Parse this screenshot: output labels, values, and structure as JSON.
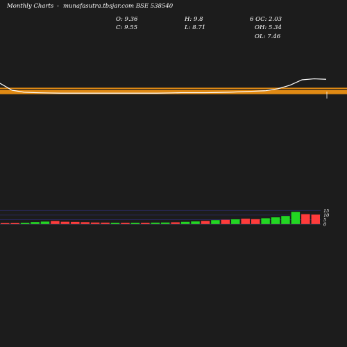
{
  "header": {
    "site_label": "Monthly Charts",
    "dash": "-",
    "source_label": "munafasutra.tbsjar.com BSE 538540",
    "open": "O: 9.36",
    "close": "C: 9.55",
    "high": "H: 9.8",
    "low": "L: 8.71",
    "oc": "6 OC: 2.03",
    "oh": "OH: 5.34",
    "ol": "OL: 7.46"
  },
  "colors": {
    "background": "#1c1c1c",
    "price_band": "#e08a14",
    "price_line": "#ffffff",
    "volume_up": "#22d622",
    "volume_down": "#ff3b3b",
    "volume_grid": "#2a2a66",
    "text": "#ffffff"
  },
  "chart_data": [
    {
      "type": "line",
      "title": "",
      "series": [
        {
          "values": [
            14.3,
            12.9,
            12.5,
            12.4,
            12.35,
            12.3,
            12.3,
            12.3,
            12.3,
            12.3,
            12.3,
            12.3,
            12.3,
            12.3,
            12.35,
            12.4,
            12.4,
            12.4,
            12.45,
            12.5,
            12.6,
            12.7,
            12.8,
            13.2,
            13.9,
            15.0,
            15.2,
            15.1
          ]
        }
      ],
      "ylim": [
        11.5,
        15.7
      ]
    },
    {
      "type": "bar",
      "title": "",
      "ytick_labels": [
        "15",
        "10",
        "5",
        "0"
      ],
      "yticks": [
        15,
        10,
        5,
        0
      ],
      "ylim": [
        0,
        16
      ],
      "bars": [
        {
          "value": 1.4,
          "dir": "down"
        },
        {
          "value": 1.5,
          "dir": "down"
        },
        {
          "value": 1.6,
          "dir": "up"
        },
        {
          "value": 2.2,
          "dir": "up"
        },
        {
          "value": 2.8,
          "dir": "up"
        },
        {
          "value": 3.5,
          "dir": "down"
        },
        {
          "value": 2.6,
          "dir": "down"
        },
        {
          "value": 2.4,
          "dir": "down"
        },
        {
          "value": 2.1,
          "dir": "down"
        },
        {
          "value": 1.8,
          "dir": "down"
        },
        {
          "value": 1.7,
          "dir": "down"
        },
        {
          "value": 1.6,
          "dir": "up"
        },
        {
          "value": 1.6,
          "dir": "down"
        },
        {
          "value": 1.6,
          "dir": "up"
        },
        {
          "value": 1.6,
          "dir": "down"
        },
        {
          "value": 1.7,
          "dir": "up"
        },
        {
          "value": 1.8,
          "dir": "up"
        },
        {
          "value": 2.0,
          "dir": "down"
        },
        {
          "value": 2.5,
          "dir": "up"
        },
        {
          "value": 3.0,
          "dir": "up"
        },
        {
          "value": 3.6,
          "dir": "down"
        },
        {
          "value": 4.4,
          "dir": "up"
        },
        {
          "value": 4.8,
          "dir": "down"
        },
        {
          "value": 5.3,
          "dir": "up"
        },
        {
          "value": 6.0,
          "dir": "down"
        },
        {
          "value": 5.5,
          "dir": "down"
        },
        {
          "value": 6.5,
          "dir": "up"
        },
        {
          "value": 7.5,
          "dir": "up"
        },
        {
          "value": 9.0,
          "dir": "up"
        },
        {
          "value": 13.5,
          "dir": "up"
        },
        {
          "value": 11.0,
          "dir": "down"
        },
        {
          "value": 10.5,
          "dir": "down"
        }
      ]
    }
  ]
}
